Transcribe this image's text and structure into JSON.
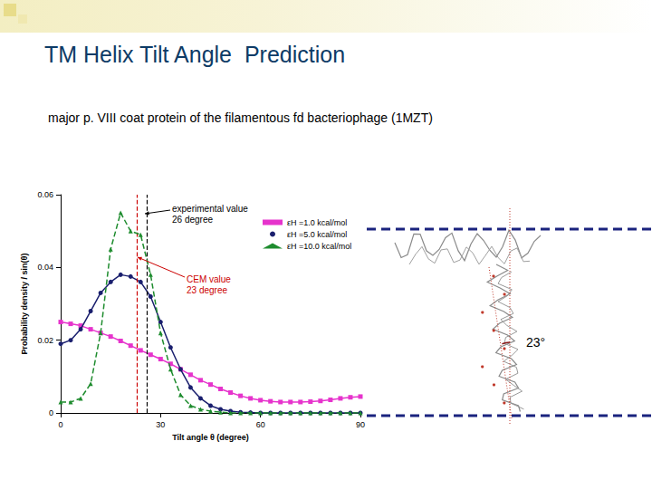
{
  "title": "TM Helix Tilt Angle  Prediction",
  "subtitle": "major p. VIII coat protein of the filamentous fd bacteriophage (1MZT)",
  "chart_data": {
    "type": "line",
    "x_label": "Tilt angle θ (degree)",
    "y_label": "Probability density / sin(θ)",
    "xlim": [
      0,
      90
    ],
    "xticks": [
      0,
      30,
      60,
      90
    ],
    "ylim": [
      0,
      0.06
    ],
    "yticks": [
      0,
      0.02,
      0.04,
      0.06
    ],
    "grid": false,
    "legend": "upper right",
    "x": [
      0,
      3,
      6,
      9,
      12,
      15,
      18,
      21,
      24,
      27,
      30,
      33,
      36,
      39,
      42,
      45,
      48,
      51,
      54,
      57,
      60,
      63,
      66,
      69,
      72,
      75,
      78,
      81,
      84,
      87,
      90
    ],
    "series": [
      {
        "name": "εH =1.0 kcal/mol",
        "color": "#e633cc",
        "marker": "square",
        "line_style": "solid",
        "values": [
          0.025,
          0.0245,
          0.024,
          0.023,
          0.022,
          0.021,
          0.0198,
          0.0185,
          0.0172,
          0.016,
          0.0148,
          0.0135,
          0.012,
          0.0105,
          0.009,
          0.0078,
          0.0066,
          0.0056,
          0.0047,
          0.004,
          0.0035,
          0.0032,
          0.003,
          0.003,
          0.003,
          0.0031,
          0.0033,
          0.0036,
          0.004,
          0.0043,
          0.0045
        ]
      },
      {
        "name": "εH =5.0 kcal/mol",
        "color": "#1a1f6e",
        "marker": "circle",
        "line_style": "solid",
        "values": [
          0.019,
          0.02,
          0.023,
          0.028,
          0.033,
          0.036,
          0.038,
          0.0375,
          0.036,
          0.032,
          0.025,
          0.018,
          0.012,
          0.007,
          0.004,
          0.002,
          0.001,
          0.0005,
          0.0002,
          0.0001,
          0,
          0,
          0,
          0,
          0,
          0,
          0,
          0,
          0,
          0,
          0
        ]
      },
      {
        "name": "εH =10.0 kcal/mol",
        "color": "#1e8c2e",
        "marker": "triangle",
        "line_style": "dashed",
        "values": [
          0.003,
          0.003,
          0.004,
          0.008,
          0.022,
          0.045,
          0.055,
          0.05,
          0.049,
          0.038,
          0.022,
          0.012,
          0.005,
          0.002,
          0.001,
          0.0005,
          0.0002,
          0,
          0,
          0,
          0,
          0,
          0,
          0,
          0,
          0,
          0,
          0,
          0,
          0,
          0
        ]
      }
    ],
    "annotations": [
      {
        "x": 26,
        "text": "experimental value\n26 degree",
        "color": "#000000"
      },
      {
        "x": 23,
        "text": "CEM value\n23 degree",
        "color": "#cc0000"
      }
    ]
  },
  "figure": {
    "angle_label": "23°"
  }
}
